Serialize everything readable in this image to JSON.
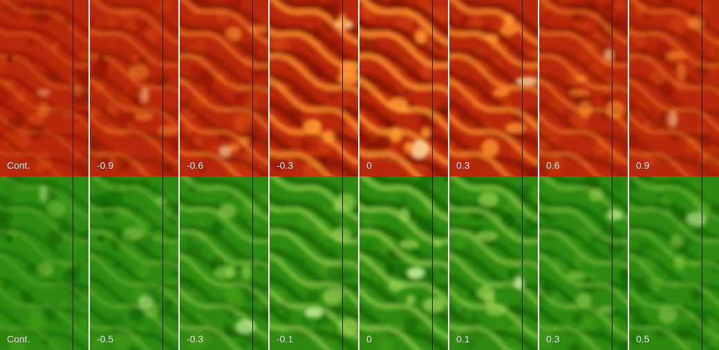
{
  "rows": [
    {
      "name": "red",
      "palette": {
        "base": "#b8280a",
        "dark": "#7a0f02",
        "mid": "#d84a10",
        "bright": "#ff9a30",
        "peak": "#ffe0a0"
      },
      "labels": [
        "Cont.",
        "-0.9",
        "-0.6",
        "-0.3",
        "0",
        "0.3",
        "0.6",
        "0.9"
      ],
      "intensity": [
        0.15,
        0.3,
        0.5,
        0.85,
        0.9,
        0.75,
        0.45,
        0.35
      ]
    },
    {
      "name": "green",
      "palette": {
        "base": "#2e8a10",
        "dark": "#0c5a02",
        "mid": "#4aa018",
        "bright": "#9ad050",
        "peak": "#e0ffb0"
      },
      "labels": [
        "Cont.",
        "-0.5",
        "-0.3",
        "-0.1",
        "0",
        "0.1",
        "0.3",
        "0.5"
      ],
      "intensity": [
        0.15,
        0.3,
        0.5,
        0.7,
        0.75,
        0.65,
        0.45,
        0.35
      ]
    }
  ]
}
